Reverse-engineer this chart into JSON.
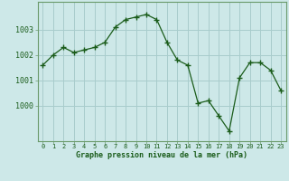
{
  "x": [
    0,
    1,
    2,
    3,
    4,
    5,
    6,
    7,
    8,
    9,
    10,
    11,
    12,
    13,
    14,
    15,
    16,
    17,
    18,
    19,
    20,
    21,
    22,
    23
  ],
  "y": [
    1001.6,
    1002.0,
    1002.3,
    1002.1,
    1002.2,
    1002.3,
    1002.5,
    1003.1,
    1003.4,
    1003.5,
    1003.6,
    1003.4,
    1002.5,
    1001.8,
    1001.6,
    1000.1,
    1000.2,
    999.6,
    999.0,
    1001.1,
    1001.7,
    1001.7,
    1001.4,
    1000.6
  ],
  "bg_color": "#cde8e8",
  "grid_color": "#a8cccc",
  "line_color": "#1a5c1a",
  "marker_color": "#1a5c1a",
  "axis_label_color": "#1a5c1a",
  "tick_label_color": "#1a5c1a",
  "border_color": "#6a9a6a",
  "ylabel_ticks": [
    1000,
    1001,
    1002,
    1003
  ],
  "ylim": [
    998.6,
    1004.1
  ],
  "xlim": [
    -0.5,
    23.5
  ],
  "xlabel": "Graphe pression niveau de la mer (hPa)"
}
